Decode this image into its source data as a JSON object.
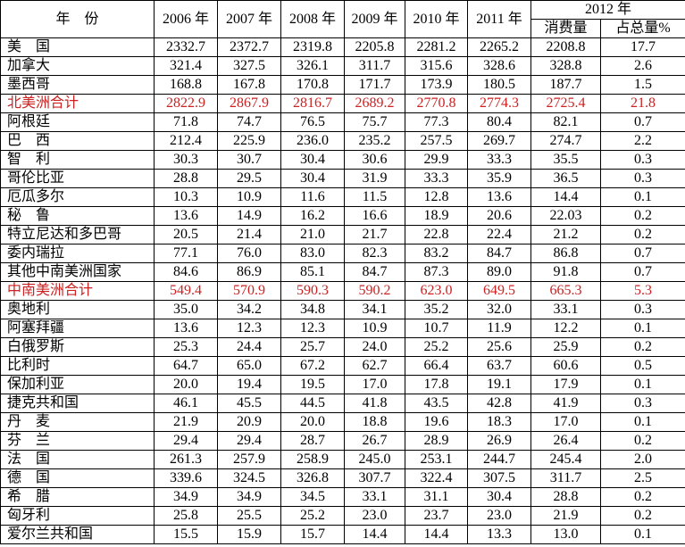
{
  "table": {
    "highlight_color": "#cc2222",
    "header": {
      "year_label": "年　份",
      "years": [
        "2006 年",
        "2007 年",
        "2008 年",
        "2009 年",
        "2010 年",
        "2011 年"
      ],
      "year_2012": "2012 年",
      "sub_2012": [
        "消费量",
        "占总量%"
      ]
    },
    "rows": [
      {
        "name": "美　国",
        "highlight": false,
        "values": [
          "2332.7",
          "2372.7",
          "2319.8",
          "2205.8",
          "2281.2",
          "2265.2",
          "2208.8",
          "17.7"
        ]
      },
      {
        "name": "加拿大",
        "highlight": false,
        "values": [
          "321.4",
          "327.5",
          "326.1",
          "311.7",
          "315.6",
          "328.6",
          "328.8",
          "2.6"
        ]
      },
      {
        "name": "墨西哥",
        "highlight": false,
        "values": [
          "168.8",
          "167.8",
          "170.8",
          "171.7",
          "173.9",
          "180.5",
          "187.7",
          "1.5"
        ]
      },
      {
        "name": "北美洲合计",
        "highlight": true,
        "values": [
          "2822.9",
          "2867.9",
          "2816.7",
          "2689.2",
          "2770.8",
          "2774.3",
          "2725.4",
          "21.8"
        ]
      },
      {
        "name": "阿根廷",
        "highlight": false,
        "values": [
          "71.8",
          "74.7",
          "76.5",
          "75.7",
          "77.3",
          "80.4",
          "82.1",
          "0.7"
        ]
      },
      {
        "name": "巴　西",
        "highlight": false,
        "values": [
          "212.4",
          "225.9",
          "236.0",
          "235.2",
          "257.5",
          "269.7",
          "274.7",
          "2.2"
        ]
      },
      {
        "name": "智　利",
        "highlight": false,
        "values": [
          "30.3",
          "30.7",
          "30.4",
          "30.6",
          "29.9",
          "33.3",
          "35.5",
          "0.3"
        ]
      },
      {
        "name": "哥伦比亚",
        "highlight": false,
        "values": [
          "28.8",
          "29.5",
          "30.4",
          "31.9",
          "33.3",
          "35.9",
          "36.5",
          "0.3"
        ]
      },
      {
        "name": "厄瓜多尔",
        "highlight": false,
        "values": [
          "10.3",
          "10.9",
          "11.6",
          "11.5",
          "12.8",
          "13.6",
          "14.4",
          "0.1"
        ]
      },
      {
        "name": "秘　鲁",
        "highlight": false,
        "values": [
          "13.6",
          "14.9",
          "16.2",
          "16.6",
          "18.9",
          "20.6",
          "22.03",
          "0.2"
        ]
      },
      {
        "name": "特立尼达和多巴哥",
        "highlight": false,
        "values": [
          "20.5",
          "21.4",
          "21.0",
          "21.7",
          "22.8",
          "22.4",
          "21.2",
          "0.2"
        ]
      },
      {
        "name": "委内瑞拉",
        "highlight": false,
        "values": [
          "77.1",
          "76.0",
          "83.0",
          "82.3",
          "83.2",
          "84.7",
          "86.8",
          "0.7"
        ]
      },
      {
        "name": "其他中南美洲国家",
        "highlight": false,
        "values": [
          "84.6",
          "86.9",
          "85.1",
          "84.7",
          "87.3",
          "89.0",
          "91.8",
          "0.7"
        ]
      },
      {
        "name": "中南美洲合计",
        "highlight": true,
        "values": [
          "549.4",
          "570.9",
          "590.3",
          "590.2",
          "623.0",
          "649.5",
          "665.3",
          "5.3"
        ]
      },
      {
        "name": "奥地利",
        "highlight": false,
        "values": [
          "35.0",
          "34.2",
          "34.8",
          "34.1",
          "35.2",
          "32.0",
          "33.1",
          "0.3"
        ]
      },
      {
        "name": "阿塞拜疆",
        "highlight": false,
        "values": [
          "13.6",
          "12.3",
          "12.3",
          "10.9",
          "10.7",
          "11.9",
          "12.2",
          "0.1"
        ]
      },
      {
        "name": "白俄罗斯",
        "highlight": false,
        "values": [
          "25.3",
          "24.4",
          "25.7",
          "24.0",
          "25.2",
          "25.6",
          "25.9",
          "0.2"
        ]
      },
      {
        "name": "比利时",
        "highlight": false,
        "values": [
          "64.7",
          "65.0",
          "67.2",
          "62.7",
          "66.4",
          "63.7",
          "60.6",
          "0.5"
        ]
      },
      {
        "name": "保加利亚",
        "highlight": false,
        "values": [
          "20.0",
          "19.4",
          "19.5",
          "17.0",
          "17.8",
          "19.1",
          "17.9",
          "0.1"
        ]
      },
      {
        "name": "捷克共和国",
        "highlight": false,
        "values": [
          "46.1",
          "45.5",
          "44.5",
          "41.8",
          "43.5",
          "42.8",
          "41.9",
          "0.3"
        ]
      },
      {
        "name": "丹　麦",
        "highlight": false,
        "values": [
          "21.9",
          "20.9",
          "20.0",
          "18.8",
          "19.6",
          "18.3",
          "17.0",
          "0.1"
        ]
      },
      {
        "name": "芬　兰",
        "highlight": false,
        "values": [
          "29.4",
          "29.4",
          "28.7",
          "26.7",
          "28.9",
          "26.9",
          "26.4",
          "0.2"
        ]
      },
      {
        "name": "法　国",
        "highlight": false,
        "values": [
          "261.3",
          "257.9",
          "258.9",
          "245.0",
          "253.1",
          "244.7",
          "245.4",
          "2.0"
        ]
      },
      {
        "name": "德　国",
        "highlight": false,
        "values": [
          "339.6",
          "324.5",
          "326.8",
          "307.7",
          "322.4",
          "307.5",
          "311.7",
          "2.5"
        ]
      },
      {
        "name": "希　腊",
        "highlight": false,
        "values": [
          "34.9",
          "34.9",
          "34.5",
          "33.1",
          "31.1",
          "30.4",
          "28.8",
          "0.2"
        ]
      },
      {
        "name": "匈牙利",
        "highlight": false,
        "values": [
          "25.8",
          "25.5",
          "25.2",
          "23.0",
          "23.7",
          "23.0",
          "21.9",
          "0.2"
        ]
      },
      {
        "name": "爱尔兰共和国",
        "highlight": false,
        "values": [
          "15.5",
          "15.9",
          "15.7",
          "14.4",
          "14.4",
          "13.3",
          "13.0",
          "0.1"
        ]
      }
    ]
  }
}
